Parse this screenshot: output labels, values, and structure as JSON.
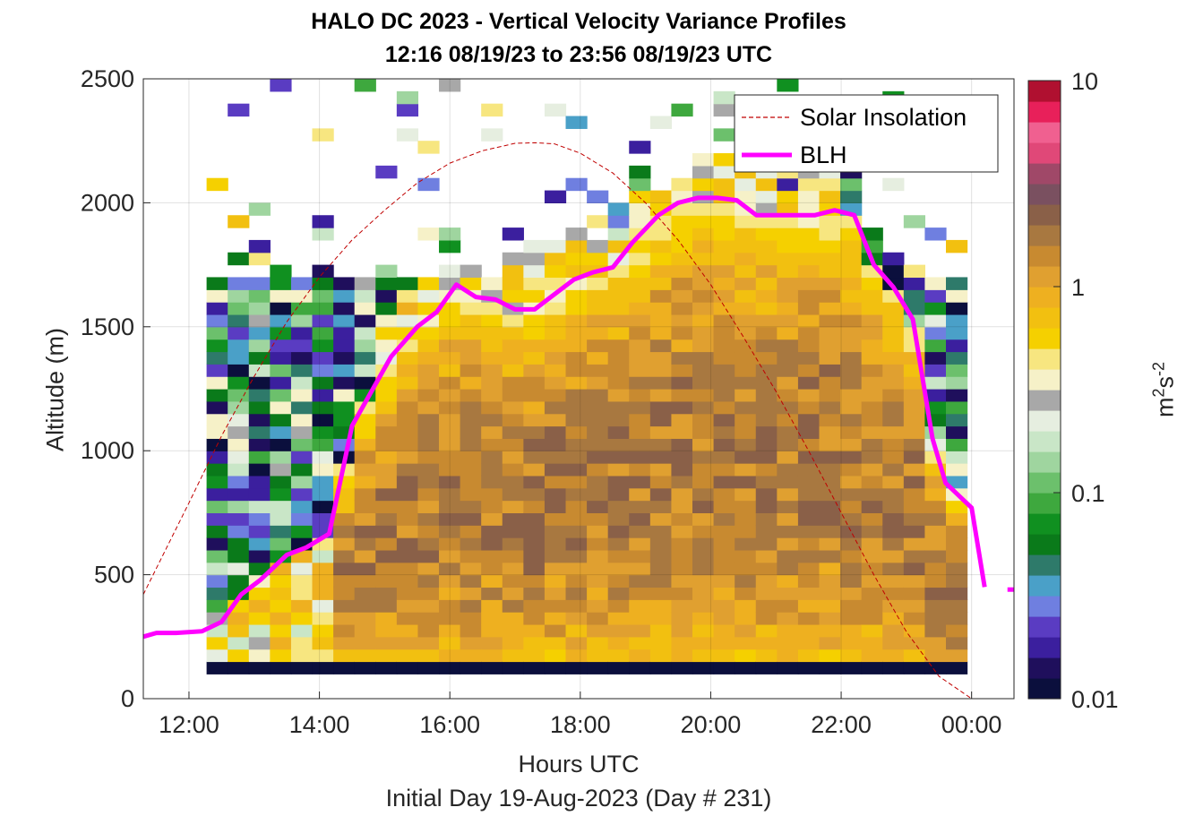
{
  "chart_data": {
    "type": "heatmap",
    "title": "HALO DC 2023 - Vertical Velocity Variance Profiles",
    "subtitle": "12:16 08/19/23 to 23:56 08/19/23  UTC",
    "xlabel": "Hours UTC",
    "xlabel2": "Initial Day 19-Aug-2023 (Day # 231)",
    "ylabel": "Altitude (m)",
    "colorbar_label_base": "m",
    "colorbar_label_exp1": "2",
    "colorbar_label_mid": "s",
    "colorbar_label_exp2": "-2",
    "x_range_hours": [
      11.3,
      24.65
    ],
    "ylim": [
      0,
      2500
    ],
    "x_ticks": [
      {
        "value": 12,
        "label": "12:00"
      },
      {
        "value": 14,
        "label": "14:00"
      },
      {
        "value": 16,
        "label": "16:00"
      },
      {
        "value": 18,
        "label": "18:00"
      },
      {
        "value": 20,
        "label": "20:00"
      },
      {
        "value": 22,
        "label": "22:00"
      },
      {
        "value": 24,
        "label": "00:00"
      }
    ],
    "y_ticks": [
      0,
      500,
      1000,
      1500,
      2000,
      2500
    ],
    "colorbar": {
      "scale": "log",
      "range": [
        0.01,
        10
      ],
      "ticks": [
        {
          "value": 0.01,
          "label": "0.01"
        },
        {
          "value": 0.1,
          "label": "0.1"
        },
        {
          "value": 1,
          "label": "1"
        },
        {
          "value": 10,
          "label": "10"
        }
      ],
      "colormap": [
        "#0b0f3d",
        "#1f0f5c",
        "#3b1f9e",
        "#5a3cc2",
        "#6f7fe0",
        "#4aa0c8",
        "#2e7a6a",
        "#0a7a1a",
        "#109020",
        "#3ea83e",
        "#6cc06c",
        "#9fd59f",
        "#c9e6c7",
        "#e6eee0",
        "#a8a8a8",
        "#f6f1c8",
        "#f7e680",
        "#f5d000",
        "#f2c010",
        "#eeb020",
        "#e0a030",
        "#c88a30",
        "#a87840",
        "#8a6048",
        "#7a5060",
        "#a04868",
        "#e04878",
        "#f06090",
        "#e8205a",
        "#b01030"
      ]
    },
    "grid": true,
    "legend": {
      "position": "top-right",
      "entries": [
        {
          "label": "Solar Insolation",
          "style": "dashed",
          "color": "#c00000"
        },
        {
          "label": "BLH",
          "style": "solid",
          "color": "#ff00ff"
        }
      ]
    },
    "series": [
      {
        "name": "BLH",
        "unit": "m",
        "x_hours": [
          11.3,
          11.5,
          11.8,
          12.2,
          12.5,
          12.8,
          13.1,
          13.5,
          13.8,
          14.15,
          14.5,
          14.8,
          15.1,
          15.5,
          15.8,
          16.1,
          16.4,
          16.7,
          17.0,
          17.3,
          17.6,
          17.9,
          18.2,
          18.5,
          18.8,
          19.2,
          19.5,
          19.8,
          20.1,
          20.4,
          20.7,
          21.0,
          21.3,
          21.6,
          21.9,
          22.2,
          22.5,
          22.8,
          23.1,
          23.4,
          23.6,
          23.8,
          24.0,
          24.2
        ],
        "y_m": [
          250,
          265,
          265,
          272,
          310,
          420,
          480,
          580,
          610,
          665,
          1100,
          1240,
          1380,
          1500,
          1560,
          1670,
          1620,
          1610,
          1570,
          1570,
          1630,
          1690,
          1720,
          1740,
          1840,
          1950,
          2000,
          2020,
          2020,
          2010,
          1950,
          1950,
          1950,
          1950,
          1970,
          1950,
          1750,
          1660,
          1530,
          1050,
          870,
          820,
          770,
          450
        ],
        "extra_segment": {
          "x_hours": [
            24.55,
            24.65
          ],
          "y_m": [
            440,
            440
          ]
        }
      },
      {
        "name": "Solar Insolation",
        "note_units": "normalized curve, peak near 17:10 UTC",
        "x_hours": [
          11.3,
          12.0,
          12.5,
          13.0,
          13.5,
          14.0,
          14.5,
          15.0,
          15.5,
          16.0,
          16.5,
          17.0,
          17.3,
          17.6,
          18.0,
          18.5,
          19.0,
          19.5,
          20.0,
          20.5,
          21.0,
          21.5,
          22.0,
          22.5,
          23.0,
          23.5,
          24.0,
          24.3,
          24.65
        ],
        "y_m": [
          420,
          790,
          1060,
          1300,
          1520,
          1700,
          1850,
          1970,
          2080,
          2160,
          2210,
          2240,
          2242,
          2238,
          2200,
          2120,
          2000,
          1850,
          1670,
          1460,
          1240,
          1000,
          750,
          500,
          270,
          90,
          0,
          0,
          0
        ]
      }
    ],
    "heatmap_desc": {
      "time_start_hours": 12.27,
      "time_end_hours": 23.93,
      "bins_x": 36,
      "bins_y": 61,
      "altitude_bin_m": 50,
      "base_row_altitude_m": 100
    }
  }
}
